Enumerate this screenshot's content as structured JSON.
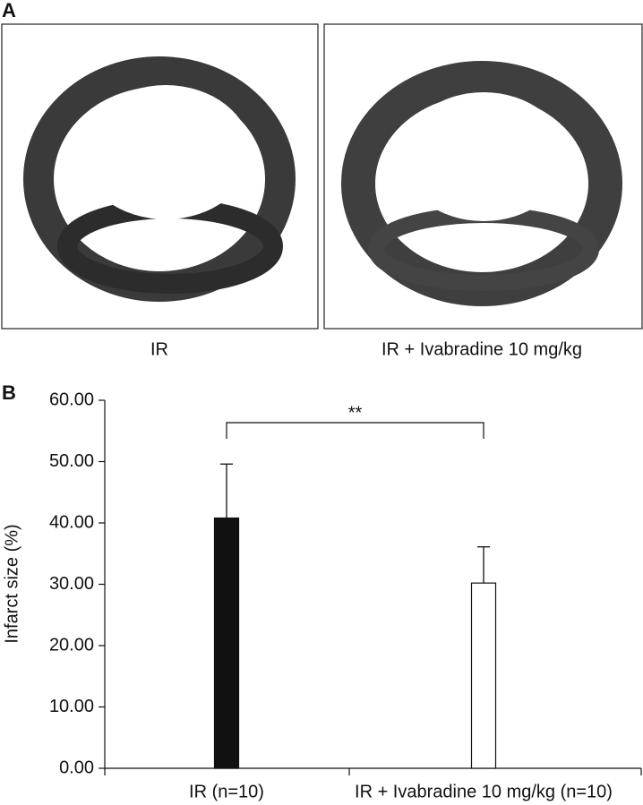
{
  "panel_a": {
    "label": "A",
    "images": [
      {
        "caption": "IR"
      },
      {
        "caption": "IR + Ivabradine 10 mg/kg"
      }
    ]
  },
  "chart_data": {
    "type": "bar",
    "panel_label": "B",
    "ylabel": "Infarct size (%)",
    "categories": [
      "IR (n=10)",
      "IR + Ivabradine 10 mg/kg (n=10)"
    ],
    "values": [
      40.8,
      30.2
    ],
    "errors": [
      8.8,
      5.9
    ],
    "colors": [
      "#111111",
      "#ffffff"
    ],
    "ylim": [
      0,
      60
    ],
    "yticks": [
      {
        "value": 0,
        "label": "0.00"
      },
      {
        "value": 10,
        "label": "10.00"
      },
      {
        "value": 20,
        "label": "20.00"
      },
      {
        "value": 30,
        "label": "30.00"
      },
      {
        "value": 40,
        "label": "40.00"
      },
      {
        "value": 50,
        "label": "50.00"
      },
      {
        "value": 60,
        "label": "60.00"
      }
    ],
    "annotation": "**"
  }
}
